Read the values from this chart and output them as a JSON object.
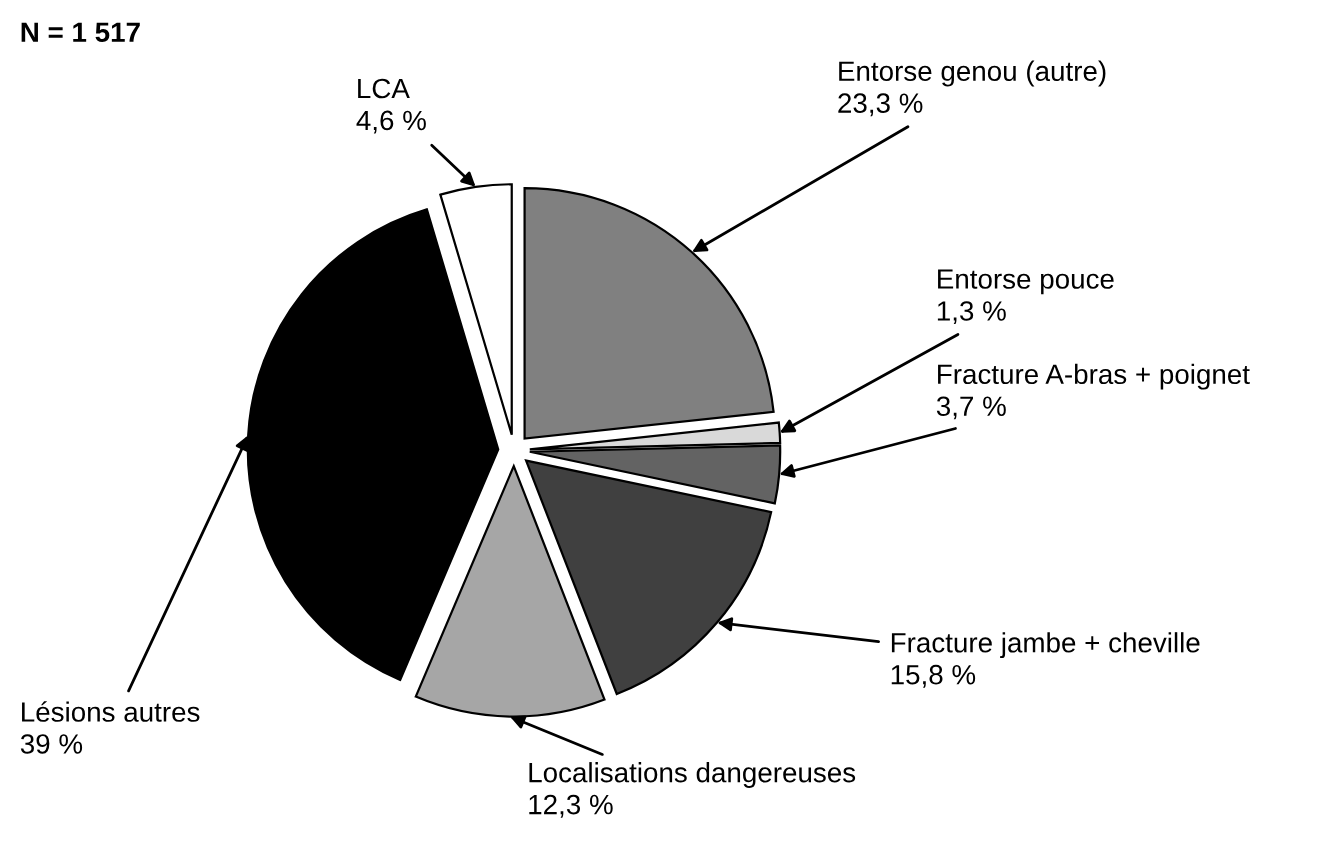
{
  "chart_data": {
    "type": "pie",
    "title": "N = 1 517",
    "categories": [
      "Entorse genou (autre)",
      "Entorse pouce",
      "Fracture A-bras + poignet",
      "Fracture jambe + cheville",
      "Localisations dangereuses",
      "Lésions autres",
      "LCA"
    ],
    "values": [
      23.3,
      1.3,
      3.7,
      15.8,
      12.3,
      39,
      4.6
    ],
    "value_labels": [
      "23,3 %",
      "1,3 %",
      "3,7 %",
      "15,8 %",
      "12,3 %",
      "39 %",
      "4,6 %"
    ],
    "colors": [
      "#808080",
      "#d9d9d9",
      "#636363",
      "#404040",
      "#a6a6a6",
      "#000000",
      "#ffffff"
    ]
  }
}
